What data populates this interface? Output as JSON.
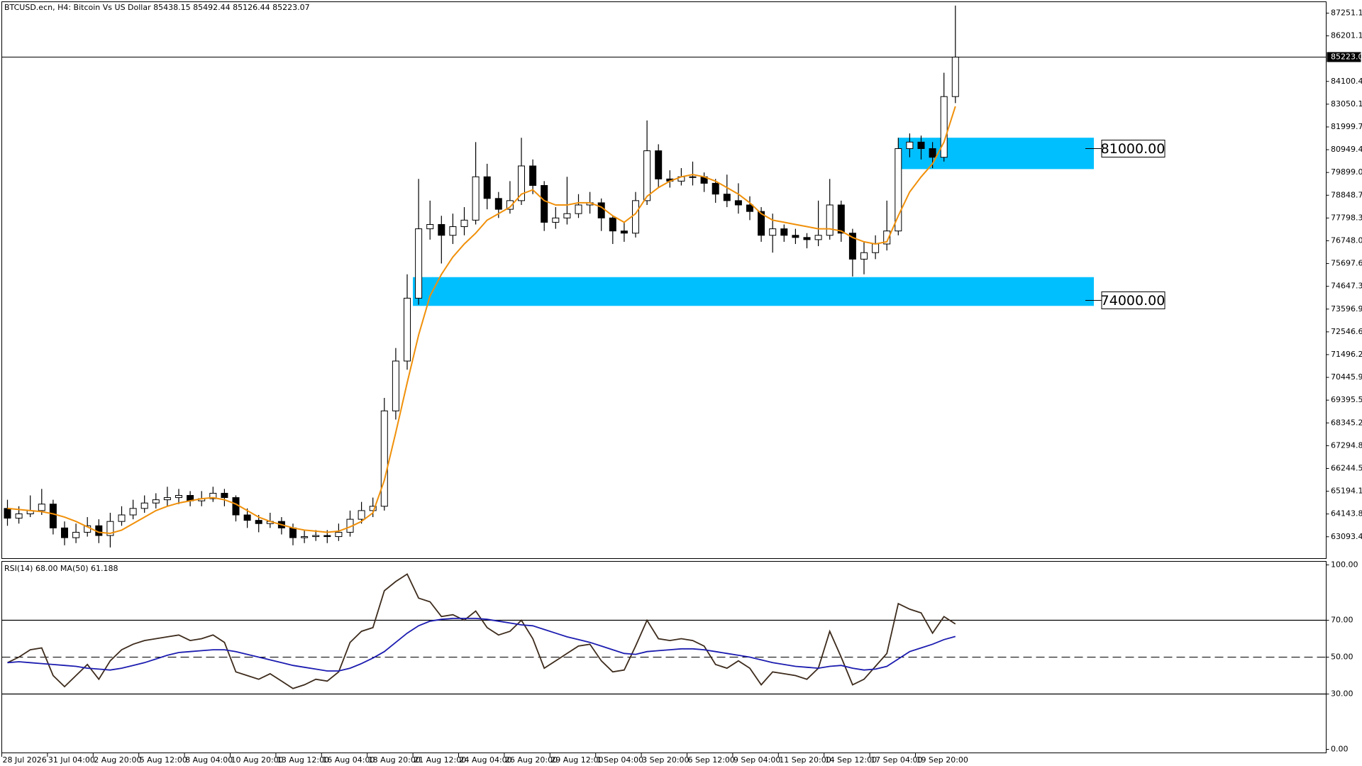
{
  "chart_data": [
    {
      "type": "candlestick",
      "title": "BTCUSD.ecn, H4: Bitcoin Vs US Dollar 85438.15 85492.44 85126.44 85223.07",
      "categories": [
        "28 Jul 2026",
        null,
        null,
        null,
        "31 Jul 04:00",
        null,
        null,
        null,
        "2 Aug 20:00",
        null,
        null,
        null,
        "5 Aug 12:00",
        null,
        null,
        null,
        "8 Aug 04:00",
        null,
        null,
        null,
        "10 Aug 20:00",
        null,
        null,
        null,
        "13 Aug 12:00",
        null,
        null,
        null,
        "16 Aug 04:00",
        null,
        null,
        null,
        "18 Aug 20:00",
        null,
        null,
        null,
        "21 Aug 12:00",
        null,
        null,
        null,
        "24 Aug 04:00",
        null,
        null,
        null,
        "26 Aug 20:00",
        null,
        null,
        null,
        "29 Aug 12:00",
        null,
        null,
        null,
        "1 Sep 04:00",
        null,
        null,
        null,
        "3 Sep 20:00",
        null,
        null,
        null,
        "6 Sep 12:00",
        null,
        null,
        null,
        "9 Sep 04:00",
        null,
        null,
        null,
        "11 Sep 20:00",
        null,
        null,
        null,
        "14 Sep 12:00",
        null,
        null,
        null,
        "17 Sep 04:00",
        null,
        null,
        null,
        "19 Sep 20:00",
        null,
        null,
        null
      ],
      "open": [
        64400,
        63950,
        64150,
        64300,
        64600,
        63500,
        63050,
        63300,
        63600,
        63150,
        63800,
        64100,
        64400,
        64650,
        64800,
        64900,
        65000,
        64750,
        64850,
        65100,
        64900,
        64100,
        63850,
        63700,
        63800,
        63500,
        63050,
        63100,
        63150,
        63100,
        63300,
        63900,
        64300,
        64500,
        68900,
        71200,
        74100,
        77300,
        77500,
        77000,
        77400,
        77700,
        79700,
        78700,
        78200,
        78600,
        80200,
        79300,
        77600,
        77800,
        78000,
        78400,
        78500,
        77800,
        77200,
        77100,
        78600,
        80900,
        79600,
        79500,
        79700,
        79700,
        79400,
        78900,
        78600,
        78400,
        78100,
        77000,
        77300,
        77000,
        76900,
        76800,
        77000,
        78400,
        77100,
        75900,
        76200,
        76600,
        77200,
        81000,
        81300,
        81000,
        80600,
        83400
      ],
      "high": [
        64800,
        64500,
        65000,
        65300,
        64800,
        63800,
        63700,
        64000,
        63900,
        64200,
        64500,
        64800,
        65000,
        65100,
        65400,
        65300,
        65200,
        65200,
        65400,
        65300,
        65000,
        64400,
        64100,
        64200,
        64000,
        63700,
        63400,
        63400,
        63400,
        63700,
        64300,
        64700,
        64900,
        69500,
        71800,
        75200,
        79600,
        78600,
        77900,
        78000,
        78300,
        81300,
        80300,
        79000,
        79500,
        81500,
        80500,
        79500,
        78300,
        79700,
        78900,
        79000,
        78700,
        77900,
        77600,
        79000,
        82300,
        81200,
        80000,
        80100,
        80400,
        79900,
        79600,
        79800,
        79400,
        78800,
        78300,
        78000,
        77500,
        77300,
        77100,
        78600,
        79600,
        78600,
        77300,
        76700,
        77000,
        78600,
        81500,
        81700,
        81600,
        81300,
        84500,
        87600
      ],
      "low": [
        63600,
        63700,
        64000,
        64100,
        63200,
        62700,
        62800,
        63100,
        62800,
        62600,
        63600,
        63900,
        64200,
        64400,
        64500,
        64600,
        64500,
        64500,
        64700,
        64500,
        63800,
        63500,
        63300,
        63500,
        63200,
        62700,
        62800,
        62900,
        62800,
        62900,
        63100,
        63700,
        64000,
        64300,
        68500,
        70800,
        73800,
        76800,
        75700,
        76600,
        77000,
        77500,
        78200,
        77800,
        78000,
        78400,
        78900,
        77200,
        77300,
        77500,
        77800,
        78000,
        77200,
        76600,
        76700,
        76900,
        78400,
        79200,
        79200,
        79300,
        79300,
        79000,
        78500,
        78300,
        78000,
        77700,
        76700,
        76200,
        76700,
        76600,
        76400,
        76500,
        76800,
        76700,
        75100,
        75200,
        75900,
        76300,
        77000,
        80600,
        80500,
        80100,
        80400,
        83100
      ],
      "close": [
        63950,
        64150,
        64300,
        64600,
        63500,
        63050,
        63300,
        63600,
        63150,
        63800,
        64100,
        64400,
        64650,
        64800,
        64900,
        65000,
        64750,
        64850,
        65100,
        64900,
        64100,
        63850,
        63700,
        63800,
        63500,
        63050,
        63100,
        63150,
        63100,
        63300,
        63900,
        64300,
        64500,
        68900,
        71200,
        74100,
        77300,
        77500,
        77000,
        77400,
        77700,
        79700,
        78700,
        78200,
        78600,
        80200,
        79300,
        77600,
        77800,
        78000,
        78400,
        78500,
        77800,
        77200,
        77100,
        78600,
        80900,
        79600,
        79500,
        79700,
        79700,
        79400,
        78900,
        78600,
        78400,
        78100,
        77000,
        77300,
        77000,
        76900,
        76800,
        77000,
        78400,
        77100,
        75900,
        76200,
        76600,
        77200,
        81000,
        81300,
        81000,
        80600,
        83400,
        85223.07
      ],
      "ma": {
        "color": "#f0900a",
        "values": [
          64400,
          64350,
          64300,
          64250,
          64150,
          64000,
          63800,
          63550,
          63300,
          63250,
          63400,
          63700,
          64000,
          64300,
          64500,
          64650,
          64750,
          64850,
          64900,
          64800,
          64600,
          64300,
          64000,
          63800,
          63650,
          63500,
          63400,
          63350,
          63300,
          63350,
          63550,
          63800,
          64200,
          65700,
          67900,
          70200,
          72400,
          74200,
          75200,
          76000,
          76600,
          77100,
          77700,
          78000,
          78300,
          78900,
          79100,
          78600,
          78400,
          78400,
          78500,
          78500,
          78300,
          77900,
          77600,
          78000,
          78800,
          79200,
          79500,
          79700,
          79800,
          79700,
          79500,
          79200,
          78900,
          78500,
          78000,
          77700,
          77600,
          77500,
          77400,
          77300,
          77300,
          77200,
          76900,
          76700,
          76600,
          76700,
          77900,
          79000,
          79700,
          80300,
          81300,
          82950
        ]
      },
      "zones": [
        {
          "label": "81000.00",
          "level": 81000,
          "top": 81502,
          "bottom": 80055,
          "start": 78,
          "color": "#00bfff"
        },
        {
          "label": "74000.00",
          "level": 74000,
          "top": 75071,
          "bottom": 73744,
          "start": 35.5,
          "color": "#00bfff"
        }
      ],
      "current_price": 85223.05,
      "ylim": [
        62088,
        87774
      ],
      "yticks": [
        87251.15,
        86201.15,
        84100.45,
        {
          "value": 83050.1,
          "label": "83050.10"
        },
        81999.75,
        {
          "value": 80949.4,
          "label": "80949.40"
        },
        79899.05,
        {
          "value": 78848.7,
          "label": "78848.70"
        },
        77798.35,
        {
          "value": 76748,
          "label": "76748.00"
        },
        75697.65,
        {
          "value": 74647.3,
          "label": "74647.30"
        },
        73596.95,
        {
          "value": 72546.6,
          "label": "72546.60"
        },
        71496.25,
        {
          "value": 70445.9,
          "label": "70445.90"
        },
        69395.55,
        {
          "value": 68345.2,
          "label": "68345.20"
        },
        67294.85,
        {
          "value": 66244.5,
          "label": "66244.50"
        },
        65194.15,
        {
          "value": 64143.8,
          "label": "64143.80"
        },
        63093.45
      ]
    },
    {
      "type": "line",
      "title": "RSI(14) 68.00 MA(50) 61.188",
      "series": [
        {
          "color": "#3d2b1c",
          "values": [
            47,
            50,
            54,
            55,
            40,
            34,
            40,
            46,
            38,
            48,
            54,
            57,
            59,
            60,
            61,
            62,
            59,
            60,
            62,
            58,
            42,
            40,
            38,
            41,
            37,
            33,
            35,
            38,
            37,
            42,
            58,
            64,
            66,
            86,
            91,
            95,
            82,
            80,
            72,
            73,
            70,
            75,
            66,
            62,
            64,
            70,
            60,
            44,
            48,
            52,
            56,
            57,
            48,
            42,
            43,
            56,
            70,
            60,
            59,
            60,
            59,
            56,
            46,
            44,
            48,
            44,
            35,
            42,
            41,
            40,
            38,
            44,
            64,
            50,
            35,
            38,
            45,
            52,
            79,
            76,
            74,
            63,
            72,
            68
          ]
        },
        {
          "color": "#1c1cb0",
          "values": [
            47,
            47.5,
            47,
            46.5,
            46,
            45.5,
            45,
            44,
            43.5,
            43,
            44,
            45.5,
            47,
            49,
            51,
            52.5,
            53,
            53.5,
            54,
            54,
            53,
            51.5,
            50,
            48.5,
            47,
            45.5,
            44.5,
            43.5,
            42.5,
            42.5,
            44,
            46.5,
            49.5,
            53,
            58,
            63,
            67,
            69.5,
            70.5,
            71,
            71,
            71,
            70.5,
            69.5,
            68.5,
            67.5,
            67,
            65,
            63,
            61,
            59.5,
            58,
            56,
            54,
            52,
            51.5,
            53,
            53.5,
            54,
            54.5,
            54.5,
            54,
            53,
            52,
            51,
            50,
            48.5,
            47,
            46,
            45,
            44.5,
            44,
            45,
            45.5,
            44,
            43,
            43.5,
            45,
            49,
            53,
            55,
            57,
            59.5,
            61.188
          ]
        }
      ],
      "ylim": [
        -1.9,
        101.9
      ],
      "yticks": [
        {
          "value": 100,
          "label": "100.00"
        },
        {
          "value": 70,
          "label": "70.00"
        },
        {
          "value": 50,
          "label": "50.00"
        },
        {
          "value": 30,
          "label": "30.00"
        },
        {
          "value": 0,
          "label": "0.00"
        }
      ]
    }
  ]
}
